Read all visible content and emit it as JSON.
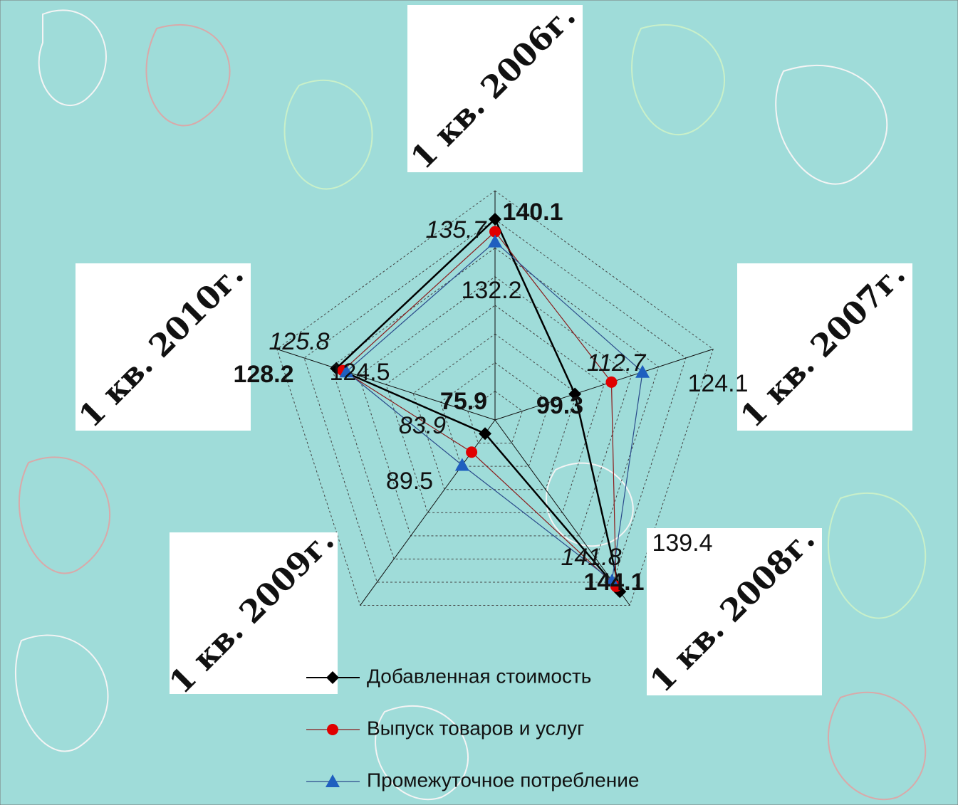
{
  "chart_data": {
    "type": "radar",
    "categories": [
      "1 кв. 2006г.",
      "1 кв. 2007г.",
      "1 кв. 2008г.",
      "1 кв. 2009г.",
      "1 кв. 2010г."
    ],
    "series": [
      {
        "name": "Добавленная стоимость",
        "color": "#000000",
        "marker": "diamond",
        "values": [
          140.1,
          99.3,
          144.1,
          75.9,
          128.2
        ]
      },
      {
        "name": "Выпуск товаров и услуг",
        "color": "#e00000",
        "marker": "circle",
        "values": [
          135.7,
          112.7,
          141.8,
          83.9,
          125.8
        ]
      },
      {
        "name": "Промежуточное потребление",
        "color": "#1f5fbf",
        "marker": "triangle",
        "values": [
          132.2,
          124.1,
          139.4,
          89.5,
          124.5
        ]
      }
    ],
    "rlim": [
      70,
      150
    ],
    "rticks": [
      70,
      80,
      90,
      100,
      110,
      120,
      130,
      140,
      150
    ],
    "grid": true
  }
}
